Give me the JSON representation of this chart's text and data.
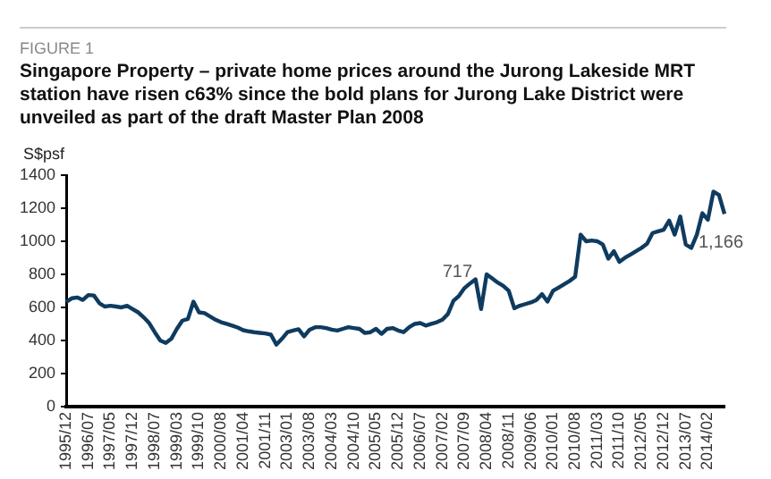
{
  "chart_data": {
    "type": "line",
    "subtitle": "FIGURE 1",
    "title": "Singapore Property – private home prices around the Jurong Lakeside MRT station have risen c63% since the bold plans for Jurong Lake District were unveiled as part of the draft Master Plan 2008",
    "ylabel": "S$psf",
    "categories": [
      "1995/12",
      null,
      null,
      null,
      "1996/07",
      null,
      null,
      null,
      "1997/05",
      null,
      null,
      null,
      "1997/12",
      null,
      null,
      null,
      "1998/07",
      null,
      null,
      null,
      "1999/03",
      null,
      null,
      null,
      "1999/10",
      null,
      null,
      null,
      "2000/08",
      null,
      null,
      null,
      "2001/04",
      null,
      null,
      null,
      "2001/11",
      null,
      null,
      null,
      "2003/01",
      null,
      null,
      null,
      "2003/08",
      null,
      null,
      null,
      "2004/03",
      null,
      null,
      null,
      "2004/10",
      null,
      null,
      null,
      "2005/05",
      null,
      null,
      null,
      "2005/12",
      null,
      null,
      null,
      "2006/07",
      null,
      null,
      null,
      "2007/02",
      null,
      null,
      null,
      "2007/09",
      null,
      null,
      null,
      "2008/04",
      null,
      null,
      null,
      "2008/11",
      null,
      null,
      null,
      "2009/06",
      null,
      null,
      null,
      "2010/01",
      null,
      null,
      null,
      "2010/08",
      null,
      null,
      null,
      "2011/03",
      null,
      null,
      null,
      "2011/10",
      null,
      null,
      null,
      "2012/05",
      null,
      null,
      null,
      "2012/12",
      null,
      null,
      null,
      "2013/07",
      null,
      null,
      null,
      "2014/02",
      null,
      null,
      null
    ],
    "series": [
      {
        "color": "#0f3b5f",
        "values": [
          633,
          655,
          660,
          645,
          675,
          672,
          625,
          605,
          610,
          605,
          600,
          610,
          590,
          570,
          540,
          505,
          450,
          400,
          385,
          410,
          470,
          520,
          530,
          635,
          570,
          565,
          545,
          525,
          510,
          500,
          490,
          478,
          462,
          455,
          450,
          446,
          442,
          435,
          375,
          410,
          450,
          460,
          468,
          425,
          465,
          480,
          480,
          475,
          465,
          460,
          470,
          480,
          475,
          470,
          445,
          450,
          470,
          440,
          470,
          475,
          460,
          450,
          480,
          500,
          505,
          490,
          500,
          510,
          525,
          560,
          640,
          670,
          717,
          745,
          770,
          590,
          800,
          775,
          750,
          730,
          700,
          595,
          610,
          620,
          630,
          645,
          680,
          635,
          700,
          720,
          740,
          760,
          785,
          1040,
          1000,
          1005,
          1000,
          980,
          895,
          940,
          875,
          900,
          920,
          940,
          960,
          985,
          1050,
          1060,
          1070,
          1125,
          1040,
          1150,
          980,
          960,
          1040,
          1170,
          1130,
          1300,
          1280,
          1166
        ]
      }
    ],
    "ylim": [
      0,
      1400
    ],
    "yticks": [
      0,
      200,
      400,
      600,
      800,
      1000,
      1200,
      1400
    ],
    "annotations": [
      {
        "text": "717",
        "x": "2007/09",
        "y": 717
      },
      {
        "text": "1,166",
        "y": 1166
      }
    ],
    "marker": "none",
    "line_style": "solid",
    "grid": false,
    "legend": false
  }
}
